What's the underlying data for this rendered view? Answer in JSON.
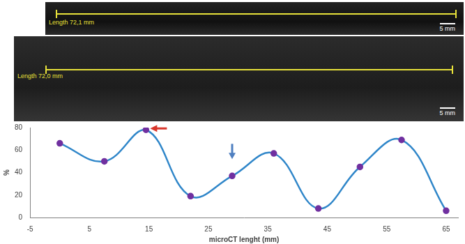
{
  "panels": [
    {
      "measure": "Length 72,1 mm",
      "scale_bar": "5 mm"
    },
    {
      "measure": "Length 72,0 mm",
      "scale_bar": "5 mm"
    }
  ],
  "chart_data": {
    "type": "line",
    "x_label": "microCT lenght (mm)",
    "y_label": "%",
    "series": [
      {
        "name": "%",
        "color": "#2f86c9",
        "marker": "circle",
        "x": [
          0,
          7.5,
          14.5,
          22,
          29,
          36,
          43.5,
          50.5,
          57.5,
          65
        ],
        "values": [
          66,
          50,
          78,
          19,
          37,
          57,
          8,
          45,
          69,
          6
        ]
      }
    ],
    "xlim": [
      -5,
      67
    ],
    "xticks": [
      -5,
      5,
      15,
      25,
      35,
      45,
      55,
      65
    ],
    "ylim": [
      0,
      80
    ],
    "yticks": [
      0,
      20,
      40,
      60,
      80
    ],
    "grid": false
  }
}
